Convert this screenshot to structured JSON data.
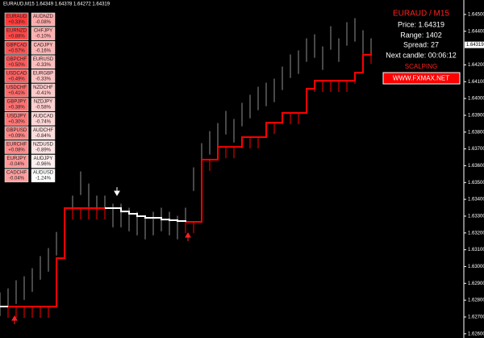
{
  "header": "EURAUD,M15  1.64349 1.64378 1.64272 1.64319",
  "tiles": {
    "left": [
      {
        "pair": "EURAUD",
        "change": "+0.33%",
        "color": "#ff3c3c"
      },
      {
        "pair": "EURNZD",
        "change": "+0.88%",
        "color": "#ff4848"
      },
      {
        "pair": "GBPCAD",
        "change": "+0.57%",
        "color": "#ff5454"
      },
      {
        "pair": "GBPCHF",
        "change": "+0.50%",
        "color": "#ff5c5c"
      },
      {
        "pair": "USDCAD",
        "change": "+0.49%",
        "color": "#ff6262"
      },
      {
        "pair": "USDCHF",
        "change": "+0.41%",
        "color": "#ff6a6a"
      },
      {
        "pair": "GBPJPY",
        "change": "+0.38%",
        "color": "#ff7070"
      },
      {
        "pair": "USDJPY",
        "change": "+0.30%",
        "color": "#ff7878"
      },
      {
        "pair": "GBPUSD",
        "change": "+0.09%",
        "color": "#ff8888"
      },
      {
        "pair": "EURCHF",
        "change": "+0.08%",
        "color": "#ff8e8e"
      },
      {
        "pair": "EURJPY",
        "change": "-0.04%",
        "color": "#ff9898"
      },
      {
        "pair": "CADCHF",
        "change": "-0.04%",
        "color": "#ffa0a0"
      }
    ],
    "right": [
      {
        "pair": "AUDNZD",
        "change": "-0.08%",
        "color": "#ffaaaa"
      },
      {
        "pair": "CHFJPY",
        "change": "-0.10%",
        "color": "#ffb0b0"
      },
      {
        "pair": "CADJPY",
        "change": "-0.16%",
        "color": "#ffb6b6"
      },
      {
        "pair": "EURUSD",
        "change": "-0.33%",
        "color": "#ffbcbc"
      },
      {
        "pair": "EURGBP",
        "change": "-0.33%",
        "color": "#ffc2c2"
      },
      {
        "pair": "NZDCHF",
        "change": "-0.41%",
        "color": "#ffc8c8"
      },
      {
        "pair": "NZDJPY",
        "change": "-0.58%",
        "color": "#ffcece"
      },
      {
        "pair": "AUDCAD",
        "change": "-0.74%",
        "color": "#ffd6d6"
      },
      {
        "pair": "AUDCHF",
        "change": "-0.84%",
        "color": "#ffdcdc"
      },
      {
        "pair": "NZDUSD",
        "change": "-0.89%",
        "color": "#ffe4e4"
      },
      {
        "pair": "AUDJPY",
        "change": "-0.96%",
        "color": "#ffeeee"
      },
      {
        "pair": "AUDUSD",
        "change": "-1.24%",
        "color": "#ffffff"
      }
    ]
  },
  "panel": {
    "title": "EURAUD  /  M15",
    "price": "Price: 1.64319",
    "range": "Range: 1402",
    "spread": "Spread: 27",
    "next_candle": "Next candle: 00:06:12",
    "mode": "SCALPING",
    "link": "WWW.FXMAX.NET"
  },
  "chart_data": {
    "type": "range-bar",
    "color": "#8f8f8f",
    "x": [
      0,
      2,
      4,
      6,
      8,
      10,
      12,
      14,
      16,
      18,
      20,
      22,
      24,
      26,
      28,
      30,
      32,
      34,
      36,
      38,
      40,
      42,
      44,
      46,
      48,
      50,
      52,
      54,
      56,
      58,
      60,
      62,
      64,
      66,
      68,
      70,
      72,
      74,
      76,
      78,
      80,
      82,
      84,
      86,
      88,
      90,
      92
    ],
    "high": [
      1.62846,
      1.6287,
      1.62918,
      1.62942,
      1.6299,
      1.63062,
      1.6311,
      1.63206,
      1.6335,
      1.63422,
      1.63566,
      1.63494,
      1.63422,
      1.63422,
      1.63374,
      1.63374,
      1.6335,
      1.63326,
      1.63302,
      1.63326,
      1.6335,
      1.63326,
      1.63302,
      1.6335,
      1.6359,
      1.63734,
      1.63806,
      1.63854,
      1.63926,
      1.63878,
      1.63974,
      1.64022,
      1.6407,
      1.64094,
      1.64118,
      1.6419,
      1.64262,
      1.64286,
      1.64358,
      1.64382,
      1.6431,
      1.6443,
      1.64358,
      1.64454,
      1.64478,
      1.64406,
      1.64358
    ],
    "low": [
      1.62706,
      1.6273,
      1.62778,
      1.62802,
      1.6285,
      1.62922,
      1.6297,
      1.63066,
      1.6321,
      1.63282,
      1.63426,
      1.63354,
      1.63282,
      1.63282,
      1.63234,
      1.63234,
      1.6321,
      1.63186,
      1.63162,
      1.63186,
      1.6321,
      1.63186,
      1.63162,
      1.6321,
      1.6345,
      1.63594,
      1.63666,
      1.63714,
      1.63786,
      1.63738,
      1.63834,
      1.63882,
      1.6393,
      1.63954,
      1.63978,
      1.6405,
      1.64122,
      1.64146,
      1.64218,
      1.64242,
      1.6417,
      1.6429,
      1.64218,
      1.64314,
      1.64338,
      1.64266,
      1.64218
    ],
    "series": [
      {
        "color": "#ff0000",
        "values": [
          null,
          1.62762,
          1.62762,
          1.62762,
          1.62762,
          1.62762,
          1.62762,
          1.6305,
          1.63348,
          1.63348,
          1.63348,
          1.63348,
          1.63348,
          1.63348,
          null,
          null,
          null,
          null,
          null,
          null,
          null,
          null,
          null,
          1.63266,
          1.63266,
          1.63636,
          1.63636,
          1.63712,
          1.63712,
          1.63712,
          1.6377,
          1.6377,
          1.6377,
          1.63856,
          1.63856,
          1.63914,
          1.63914,
          1.63914,
          1.64058,
          1.64106,
          1.64106,
          1.64106,
          1.64106,
          1.64106,
          1.64154,
          1.6426,
          1.64274
        ]
      },
      {
        "color": "#ffffff",
        "values": [
          1.62762,
          1.62762,
          null,
          null,
          null,
          null,
          null,
          null,
          null,
          null,
          null,
          null,
          null,
          1.63348,
          1.63348,
          1.63328,
          1.63314,
          1.633,
          1.6329,
          1.6329,
          1.6328,
          1.63276,
          1.63271,
          1.63266,
          null,
          null,
          null,
          null,
          null,
          null,
          null,
          null,
          null,
          null,
          null,
          null,
          null,
          null,
          null,
          null,
          null,
          null,
          null,
          null,
          null,
          null,
          null
        ]
      }
    ],
    "xlim": [
      0,
      115
    ],
    "ylim": [
      1.62575,
      1.64586
    ],
    "current": {
      "value": 1.64319,
      "label": "1.64319"
    },
    "yticks": [
      {
        "value": 1.645,
        "label": "1.64500"
      },
      {
        "value": 1.644,
        "label": "1.64400"
      },
      {
        "value": 1.642,
        "label": "1.64200"
      },
      {
        "value": 1.641,
        "label": "1.64100"
      },
      {
        "value": 1.64,
        "label": "1.64000"
      },
      {
        "value": 1.639,
        "label": "1.63900"
      },
      {
        "value": 1.638,
        "label": "1.63800"
      },
      {
        "value": 1.637,
        "label": "1.63700"
      },
      {
        "value": 1.636,
        "label": "1.63600"
      },
      {
        "value": 1.635,
        "label": "1.63500"
      },
      {
        "value": 1.634,
        "label": "1.63400"
      },
      {
        "value": 1.633,
        "label": "1.63300"
      },
      {
        "value": 1.632,
        "label": "1.63200"
      },
      {
        "value": 1.631,
        "label": "1.63100"
      },
      {
        "value": 1.63,
        "label": "1.63000"
      },
      {
        "value": 1.629,
        "label": "1.62900"
      },
      {
        "value": 1.628,
        "label": "1.62800"
      },
      {
        "value": 1.627,
        "label": "1.62700"
      },
      {
        "value": 1.626,
        "label": "1.62600"
      }
    ]
  }
}
